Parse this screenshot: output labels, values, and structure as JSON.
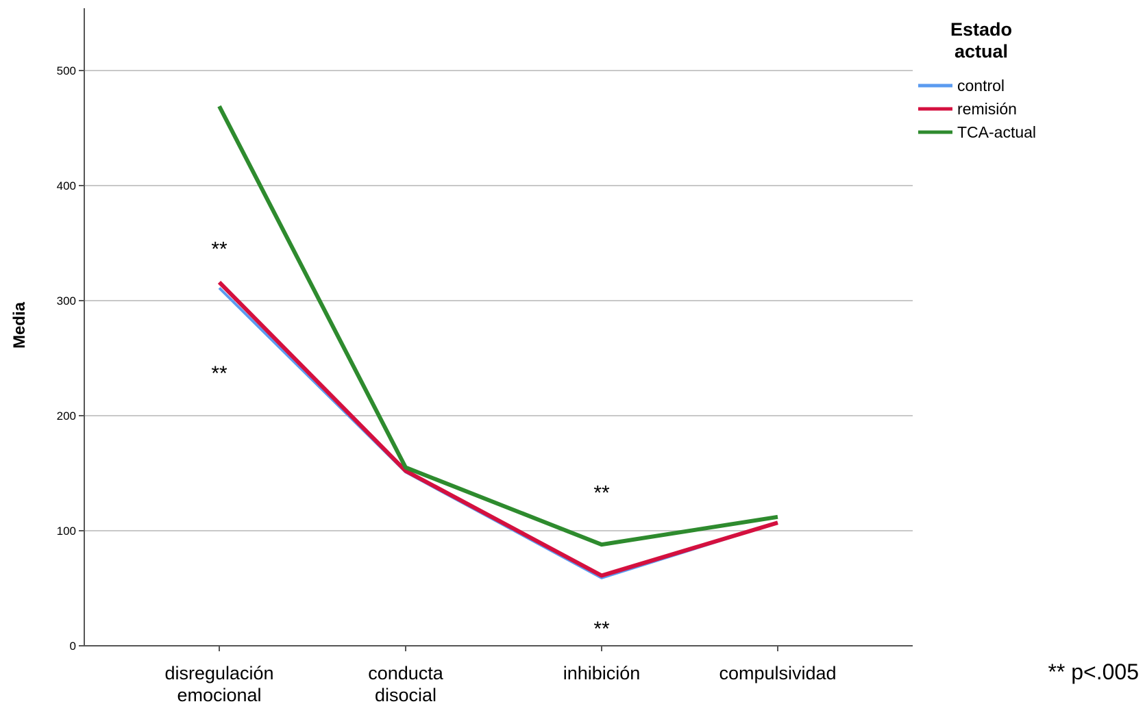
{
  "chart_data": {
    "type": "line",
    "ylabel": "Media",
    "ylim": [
      0,
      550
    ],
    "yticks": [
      0,
      100,
      200,
      300,
      400,
      500
    ],
    "grid": true,
    "categories": [
      [
        "disregulación",
        "emocional"
      ],
      [
        "conducta",
        "disocial"
      ],
      [
        "inhibición"
      ],
      [
        "compulsividad"
      ]
    ],
    "legend": {
      "title": [
        "Estado",
        "actual"
      ],
      "placement": "right"
    },
    "series": [
      {
        "name": "control",
        "color": "#5b9bf0",
        "values": [
          311,
          151,
          59,
          107
        ]
      },
      {
        "name": "remisión",
        "color": "#d4103f",
        "values": [
          316,
          152,
          61,
          107
        ]
      },
      {
        "name": "TCA-actual",
        "color": "#2e8b2e",
        "values": [
          469,
          155,
          88,
          112
        ]
      }
    ],
    "annotations": [
      {
        "text": "**",
        "category": 0,
        "y": 345
      },
      {
        "text": "**",
        "category": 0,
        "y": 237
      },
      {
        "text": "**",
        "category": 2,
        "y": 133
      },
      {
        "text": "**",
        "category": 2,
        "y": 15
      }
    ],
    "footnote": "** p<.005"
  }
}
